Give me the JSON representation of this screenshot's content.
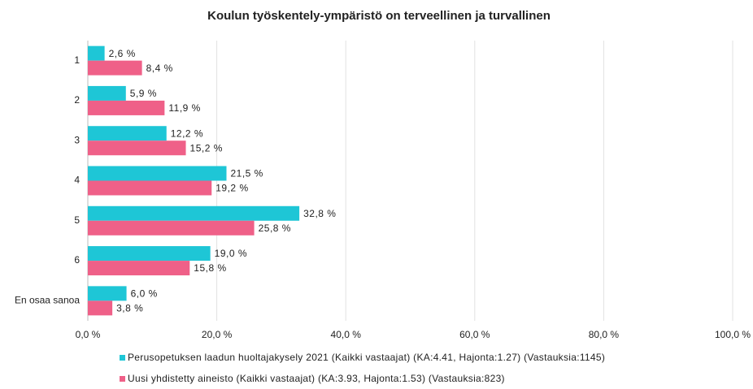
{
  "chart_data": {
    "type": "barh",
    "title": "Koulun työskentely-ympäristö on terveellinen ja turvallinen",
    "categories": [
      "1",
      "2",
      "3",
      "4",
      "5",
      "6",
      "En osaa sanoa"
    ],
    "series": [
      {
        "name": "Perusopetuksen laadun huoltajakysely 2021 (Kaikki vastaajat) (KA:4.41, Hajonta:1.27) (Vastauksia:1145)",
        "color": "#1ec6d6",
        "values": [
          2.6,
          5.9,
          12.2,
          21.5,
          32.8,
          19.0,
          6.0
        ],
        "value_labels": [
          "2,6 %",
          "5,9 %",
          "12,2 %",
          "21,5 %",
          "32,8 %",
          "19,0 %",
          "6,0 %"
        ]
      },
      {
        "name": "Uusi yhdistetty aineisto (Kaikki vastaajat) (KA:3.93, Hajonta:1.53) (Vastauksia:823)",
        "color": "#ef6088",
        "values": [
          8.4,
          11.9,
          15.2,
          19.2,
          25.8,
          15.8,
          3.8
        ],
        "value_labels": [
          "8,4 %",
          "11,9 %",
          "15,2 %",
          "19,2 %",
          "25,8 %",
          "15,8 %",
          "3,8 %"
        ]
      }
    ],
    "xlim": [
      0,
      100
    ],
    "xticks": [
      {
        "value": 0,
        "label": "0,0 %"
      },
      {
        "value": 20,
        "label": "20,0 %"
      },
      {
        "value": 40,
        "label": "40,0 %"
      },
      {
        "value": 60,
        "label": "60,0 %"
      },
      {
        "value": 80,
        "label": "80,0 %"
      },
      {
        "value": 100,
        "label": "100,0 %"
      }
    ],
    "grid": true,
    "legend": "bottom"
  }
}
